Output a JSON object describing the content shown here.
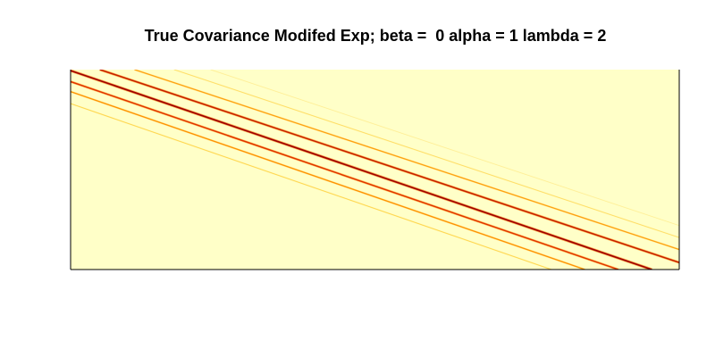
{
  "chart_data": {
    "type": "heatmap",
    "title": "True Covariance Modifed Exp; beta =  0 alpha = 1 lambda = 2",
    "xlabel": "",
    "ylabel": "",
    "axes_visible": false,
    "grid": false,
    "legend": "none",
    "background_color": "#FFFFC8",
    "colormap": [
      "#FFFFC8",
      "#FFD54A",
      "#FF8C00",
      "#E03000",
      "#A00000"
    ],
    "bands": [
      {
        "name": "",
        "intensity": 1.0,
        "start": [
          0.0,
          0.005
        ],
        "end": [
          0.955,
          1.0
        ]
      },
      {
        "name": "",
        "intensity": 0.85,
        "start": [
          0.048,
          0.0
        ],
        "end": [
          1.0,
          0.965
        ]
      },
      {
        "name": "",
        "intensity": 0.75,
        "start": [
          0.0,
          0.06
        ],
        "end": [
          0.9,
          1.0
        ]
      },
      {
        "name": "",
        "intensity": 0.5,
        "start": [
          0.0,
          0.11
        ],
        "end": [
          0.845,
          1.0
        ]
      },
      {
        "name": "",
        "intensity": 0.45,
        "start": [
          0.105,
          0.0
        ],
        "end": [
          1.0,
          0.9
        ]
      },
      {
        "name": "",
        "intensity": 0.25,
        "start": [
          0.0,
          0.17
        ],
        "end": [
          0.79,
          1.0
        ]
      },
      {
        "name": "",
        "intensity": 0.2,
        "start": [
          0.17,
          0.0
        ],
        "end": [
          1.0,
          0.84
        ]
      },
      {
        "name": "",
        "intensity": 0.1,
        "start": [
          0.23,
          0.0
        ],
        "end": [
          1.0,
          0.78
        ]
      }
    ]
  }
}
